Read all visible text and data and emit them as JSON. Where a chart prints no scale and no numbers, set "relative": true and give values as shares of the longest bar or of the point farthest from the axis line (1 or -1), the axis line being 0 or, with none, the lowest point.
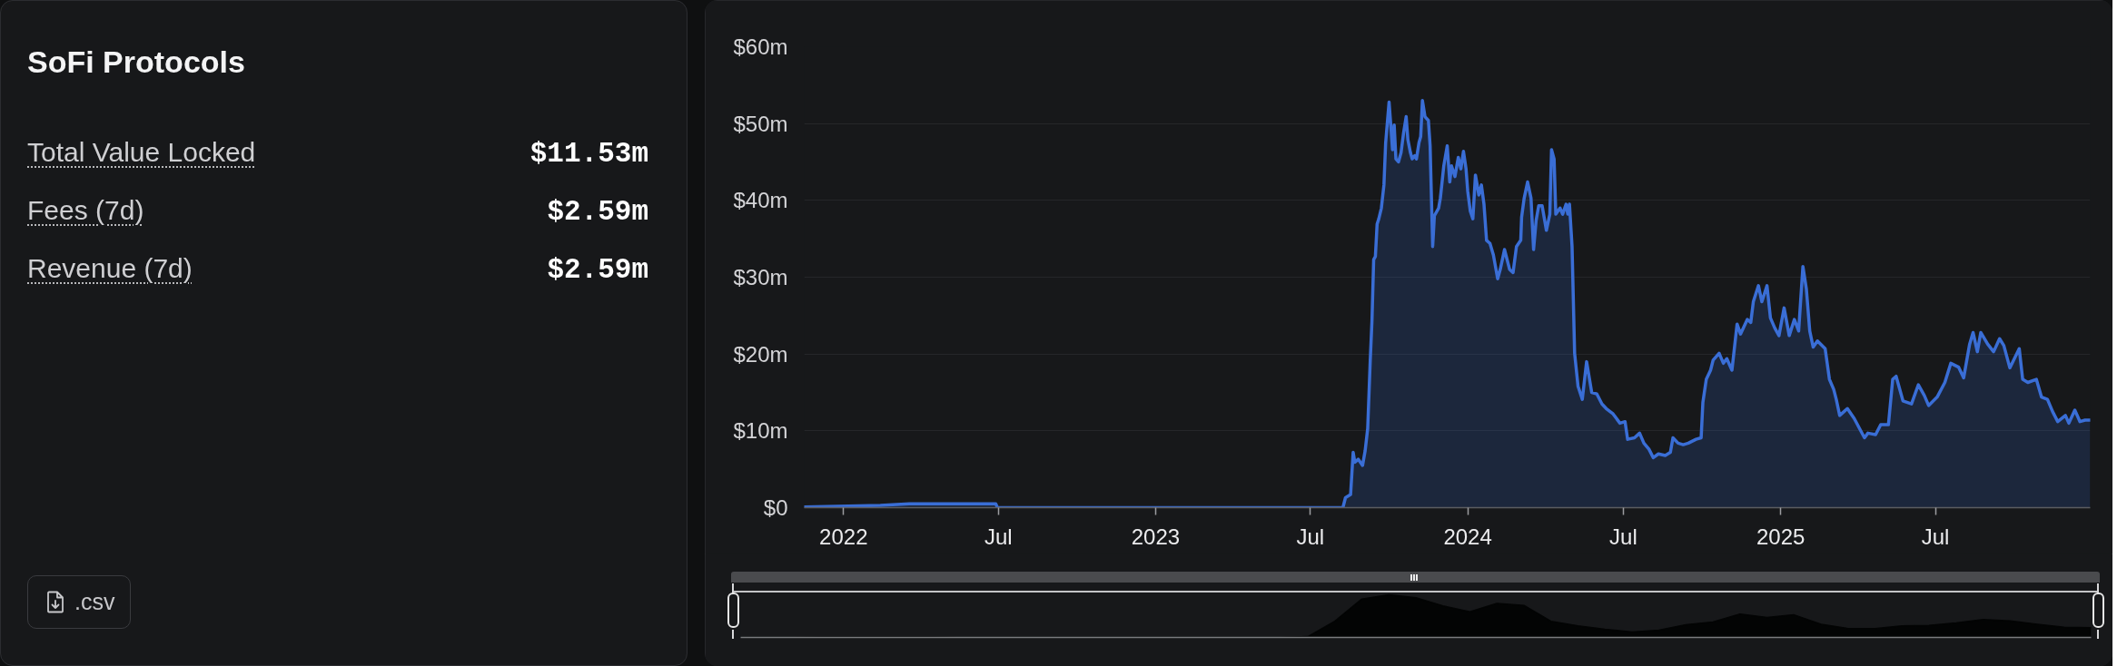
{
  "chart_data": [
    {
      "type": "other",
      "title": "SoFi Protocols",
      "annotations": [
        "Total Value Locked",
        "$11.53m",
        "Fees (7d)",
        "$2.59m",
        "Revenue (7d)",
        "$2.59m",
        ".csv"
      ]
    },
    {
      "type": "area",
      "grid": "y",
      "xlim": [
        "2021-11-16",
        "2025-12-29"
      ],
      "ylim": [
        0,
        60
      ],
      "xticks": [
        {
          "value": "2022-01-01",
          "label": "2022"
        },
        {
          "value": "2022-07-01",
          "label": "Jul"
        },
        {
          "value": "2023-01-01",
          "label": "2023"
        },
        {
          "value": "2023-07-01",
          "label": "Jul"
        },
        {
          "value": "2024-01-01",
          "label": "2024"
        },
        {
          "value": "2024-07-01",
          "label": "Jul"
        },
        {
          "value": "2025-01-01",
          "label": "2025"
        },
        {
          "value": "2025-07-01",
          "label": "Jul"
        }
      ],
      "yticks": [
        {
          "value": 0,
          "label": "$0"
        },
        {
          "value": 10,
          "label": "$10m"
        },
        {
          "value": 20,
          "label": "$20m"
        },
        {
          "value": 30,
          "label": "$30m"
        },
        {
          "value": 40,
          "label": "$40m"
        },
        {
          "value": 50,
          "label": "$50m"
        },
        {
          "value": 60,
          "label": "$60m"
        }
      ],
      "x": [
        "2021-11-16",
        "2022-02-13",
        "2022-03-19",
        "2022-06-28",
        "2022-06-30",
        "2023-08-08",
        "2023-08-11",
        "2023-08-17",
        "2023-08-20",
        "2023-08-22",
        "2023-08-26",
        "2023-08-31",
        "2023-09-03",
        "2023-09-06",
        "2023-09-09",
        "2023-09-11",
        "2023-09-13",
        "2023-09-15",
        "2023-09-17",
        "2023-09-19",
        "2023-09-22",
        "2023-09-25",
        "2023-09-27",
        "2023-10-01",
        "2023-10-03",
        "2023-10-05",
        "2023-10-07",
        "2023-10-09",
        "2023-10-12",
        "2023-10-15",
        "2023-10-18",
        "2023-10-21",
        "2023-10-23",
        "2023-10-26",
        "2023-10-28",
        "2023-10-31",
        "2023-11-02",
        "2023-11-05",
        "2023-11-07",
        "2023-11-09",
        "2023-11-12",
        "2023-11-16",
        "2023-11-18",
        "2023-11-21",
        "2023-11-23",
        "2023-11-28",
        "2023-11-30",
        "2023-12-04",
        "2023-12-08",
        "2023-12-11",
        "2023-12-13",
        "2023-12-17",
        "2023-12-21",
        "2023-12-24",
        "2023-12-27",
        "2023-12-30",
        "2024-01-01",
        "2024-01-04",
        "2024-01-07",
        "2024-01-10",
        "2024-01-14",
        "2024-01-17",
        "2024-01-20",
        "2024-01-23",
        "2024-01-27",
        "2024-01-31",
        "2024-02-05",
        "2024-02-08",
        "2024-02-13",
        "2024-02-19",
        "2024-02-23",
        "2024-02-27",
        "2024-03-03",
        "2024-03-04",
        "2024-03-07",
        "2024-03-11",
        "2024-03-15",
        "2024-03-18",
        "2024-03-21",
        "2024-03-24",
        "2024-03-28",
        "2024-04-02",
        "2024-04-06",
        "2024-04-08",
        "2024-04-11",
        "2024-04-13",
        "2024-04-18",
        "2024-04-21",
        "2024-04-25",
        "2024-04-27",
        "2024-04-29",
        "2024-05-02",
        "2024-05-05",
        "2024-05-09",
        "2024-05-14",
        "2024-05-19",
        "2024-05-25",
        "2024-05-31",
        "2024-06-06",
        "2024-06-11",
        "2024-06-19",
        "2024-06-27",
        "2024-07-03",
        "2024-07-06",
        "2024-07-14",
        "2024-07-20",
        "2024-07-25",
        "2024-07-31",
        "2024-08-05",
        "2024-08-11",
        "2024-08-19",
        "2024-08-25",
        "2024-08-28",
        "2024-09-03",
        "2024-09-09",
        "2024-09-15",
        "2024-09-24",
        "2024-09-30",
        "2024-10-02",
        "2024-10-06",
        "2024-10-11",
        "2024-10-14",
        "2024-10-21",
        "2024-10-26",
        "2024-10-30",
        "2024-11-05",
        "2024-11-11",
        "2024-11-15",
        "2024-11-23",
        "2024-11-27",
        "2024-11-30",
        "2024-12-06",
        "2024-12-10",
        "2024-12-16",
        "2024-12-20",
        "2024-12-25",
        "2024-12-30",
        "2025-01-05",
        "2025-01-11",
        "2025-01-17",
        "2025-01-22",
        "2025-01-27",
        "2025-01-31",
        "2025-02-04",
        "2025-02-08",
        "2025-02-13",
        "2025-02-22",
        "2025-02-27",
        "2025-03-04",
        "2025-03-07",
        "2025-03-11",
        "2025-03-20",
        "2025-03-28",
        "2025-04-09",
        "2025-04-13",
        "2025-04-22",
        "2025-04-28",
        "2025-05-07",
        "2025-05-12",
        "2025-05-16",
        "2025-05-24",
        "2025-06-03",
        "2025-06-11",
        "2025-06-18",
        "2025-06-23",
        "2025-07-03",
        "2025-07-12",
        "2025-07-19",
        "2025-07-28",
        "2025-08-03",
        "2025-08-10",
        "2025-08-14",
        "2025-08-19",
        "2025-08-23",
        "2025-08-31",
        "2025-09-07",
        "2025-09-14",
        "2025-09-19",
        "2025-09-26",
        "2025-10-07",
        "2025-10-11",
        "2025-10-17",
        "2025-10-27",
        "2025-11-02",
        "2025-11-09",
        "2025-11-15",
        "2025-11-21",
        "2025-11-30",
        "2025-12-04",
        "2025-12-11",
        "2025-12-17",
        "2025-12-23",
        "2025-12-29"
      ],
      "series": [
        {
          "color": "#3a6ed6",
          "values": [
            0.1,
            0.3,
            0.5,
            0.5,
            0,
            0,
            1.3,
            1.7,
            7.2,
            5.9,
            6.3,
            5.5,
            7.4,
            10.3,
            19.2,
            24.3,
            32.3,
            32.7,
            36.9,
            37.6,
            39.0,
            42.0,
            47.5,
            52.8,
            49.8,
            46.6,
            49.8,
            45.4,
            45.0,
            46.2,
            48.8,
            50.9,
            47.9,
            46.2,
            45.4,
            45.8,
            45.4,
            47.5,
            48.3,
            53.0,
            50.9,
            50.4,
            47.1,
            34.0,
            38.0,
            39.0,
            40.3,
            44.5,
            47.1,
            42.4,
            44.5,
            43.1,
            45.6,
            44.1,
            46.4,
            44.1,
            41.2,
            38.6,
            37.6,
            43.3,
            40.7,
            42.0,
            39.5,
            34.8,
            34.4,
            32.9,
            29.8,
            31.0,
            33.6,
            31.0,
            30.6,
            34.0,
            34.8,
            37.8,
            40.3,
            42.4,
            40.3,
            33.6,
            37.4,
            39.3,
            39.3,
            36.1,
            38.2,
            46.6,
            45.4,
            38.2,
            39.0,
            38.2,
            39.5,
            38.2,
            39.5,
            34.0,
            20.1,
            15.8,
            14.1,
            19.0,
            15.0,
            14.8,
            13.5,
            12.9,
            12.2,
            11.0,
            11.2,
            8.9,
            9.1,
            9.7,
            8.4,
            7.6,
            6.5,
            7.0,
            6.8,
            7.2,
            9.1,
            8.4,
            8.2,
            8.4,
            8.9,
            9.1,
            13.7,
            16.7,
            17.9,
            19.2,
            20.1,
            18.8,
            19.4,
            17.9,
            23.9,
            22.6,
            24.5,
            24.1,
            26.8,
            28.9,
            26.8,
            28.9,
            24.7,
            23.4,
            22.4,
            26.0,
            22.4,
            24.5,
            23.0,
            31.4,
            28.5,
            23.0,
            20.9,
            21.7,
            20.7,
            16.7,
            15.4,
            14.1,
            12.0,
            12.9,
            11.6,
            9.1,
            9.7,
            9.5,
            10.8,
            10.8,
            16.7,
            17.1,
            13.9,
            13.5,
            16.0,
            14.6,
            13.3,
            14.4,
            16.3,
            18.8,
            18.3,
            16.9,
            21.3,
            22.8,
            20.3,
            22.8,
            21.3,
            20.3,
            22.0,
            21.1,
            18.2,
            20.7,
            16.7,
            16.3,
            16.7,
            14.4,
            14.1,
            12.5,
            11.2,
            12.0,
            11.0,
            12.7,
            11.2,
            11.4,
            11.4
          ]
        }
      ]
    },
    {
      "type": "area",
      "relative": true,
      "color": "#030404",
      "categories": [
        null,
        null,
        null,
        null,
        null,
        null,
        null,
        null,
        null,
        null,
        null,
        null,
        null,
        null,
        null,
        null,
        null,
        null,
        null,
        null,
        null,
        null,
        null,
        null,
        null,
        null,
        null,
        null,
        null,
        null,
        null,
        null,
        null,
        null,
        null,
        null,
        null,
        null,
        null,
        null,
        null,
        null,
        null,
        null,
        null,
        null,
        null,
        null,
        null,
        null,
        null
      ],
      "values": [
        0,
        0,
        0,
        0.01,
        0.01,
        0.01,
        0.01,
        0.01,
        0,
        0,
        0,
        0,
        0,
        0,
        0,
        0,
        0,
        0,
        0,
        0,
        0,
        0.02,
        0.38,
        0.9,
        1.0,
        0.93,
        0.74,
        0.6,
        0.8,
        0.75,
        0.38,
        0.27,
        0.19,
        0.13,
        0.17,
        0.3,
        0.36,
        0.55,
        0.47,
        0.53,
        0.31,
        0.21,
        0.21,
        0.27,
        0.28,
        0.34,
        0.42,
        0.39,
        0.31,
        0.24,
        0.23
      ]
    }
  ]
}
